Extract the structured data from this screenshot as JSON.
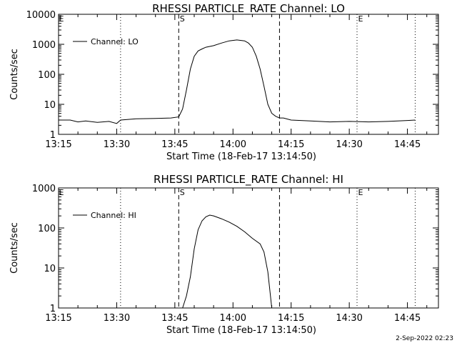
{
  "footer": {
    "timestamp": "2-Sep-2022 02:23"
  },
  "chart_data": [
    {
      "type": "line",
      "title": "RHESSI PARTICLE_RATE Channel: LO",
      "xlabel": "Start Time (18-Feb-17 13:14:50)",
      "ylabel": "Counts/sec",
      "yscale": "log",
      "ylim": [
        1,
        10000
      ],
      "xlim": [
        "13:15",
        "14:53"
      ],
      "x_ticks": [
        "13:15",
        "13:30",
        "13:45",
        "14:00",
        "14:15",
        "14:30",
        "14:45"
      ],
      "y_ticks": [
        "1",
        "10",
        "100",
        "1000",
        "10000"
      ],
      "legend": {
        "label": "Channel: LO",
        "position": "top-left"
      },
      "markers": [
        {
          "label": "S",
          "time": "13:46",
          "style": "dashed"
        },
        {
          "label": "",
          "time": "14:12",
          "style": "dashed"
        },
        {
          "label": "",
          "time": "13:31",
          "style": "dotted"
        },
        {
          "label": "E",
          "time": "14:32",
          "style": "dotted"
        },
        {
          "label": "",
          "time": "14:47",
          "style": "dotted"
        }
      ],
      "corner_label": "E",
      "grid": false,
      "series": [
        {
          "name": "Channel: LO",
          "x": [
            "13:15",
            "13:18",
            "13:20",
            "13:22",
            "13:25",
            "13:28",
            "13:30",
            "13:31",
            "13:35",
            "13:40",
            "13:44",
            "13:46",
            "13:47",
            "13:48",
            "13:49",
            "13:50",
            "13:51",
            "13:52",
            "13:53",
            "13:55",
            "13:57",
            "13:59",
            "14:01",
            "14:03",
            "14:04",
            "14:05",
            "14:06",
            "14:07",
            "14:08",
            "14:09",
            "14:10",
            "14:11",
            "14:12",
            "14:13",
            "14:15",
            "14:20",
            "14:25",
            "14:30",
            "14:35",
            "14:40",
            "14:45",
            "14:47"
          ],
          "y": [
            3.0,
            3.0,
            2.6,
            2.8,
            2.5,
            2.7,
            2.3,
            3.0,
            3.3,
            3.4,
            3.5,
            3.8,
            7,
            30,
            150,
            400,
            600,
            700,
            800,
            900,
            1100,
            1300,
            1400,
            1300,
            1100,
            800,
            400,
            150,
            40,
            10,
            5,
            4,
            3.5,
            3.5,
            3.0,
            2.8,
            2.6,
            2.7,
            2.6,
            2.7,
            2.9,
            3.0
          ]
        }
      ]
    },
    {
      "type": "line",
      "title": "RHESSI PARTICLE_RATE Channel: HI",
      "xlabel": "Start Time (18-Feb-17 13:14:50)",
      "ylabel": "Counts/sec",
      "yscale": "log",
      "ylim": [
        1,
        1000
      ],
      "xlim": [
        "13:15",
        "14:53"
      ],
      "x_ticks": [
        "13:15",
        "13:30",
        "13:45",
        "14:00",
        "14:15",
        "14:30",
        "14:45"
      ],
      "y_ticks": [
        "1",
        "10",
        "100",
        "1000"
      ],
      "legend": {
        "label": "Channel: HI",
        "position": "top-left"
      },
      "markers": [
        {
          "label": "S",
          "time": "13:46",
          "style": "dashed"
        },
        {
          "label": "",
          "time": "14:12",
          "style": "dashed"
        },
        {
          "label": "",
          "time": "13:31",
          "style": "dotted"
        },
        {
          "label": "E",
          "time": "14:32",
          "style": "dotted"
        },
        {
          "label": "",
          "time": "14:47",
          "style": "dotted"
        }
      ],
      "corner_label": "E",
      "grid": false,
      "series": [
        {
          "name": "Channel: HI",
          "x": [
            "13:47",
            "13:48",
            "13:49",
            "13:50",
            "13:51",
            "13:52",
            "13:53",
            "13:54",
            "13:55",
            "13:57",
            "13:59",
            "14:01",
            "14:03",
            "14:05",
            "14:07",
            "14:08",
            "14:09",
            "14:10"
          ],
          "y": [
            1,
            2,
            6,
            30,
            90,
            150,
            190,
            210,
            200,
            170,
            140,
            110,
            80,
            55,
            40,
            25,
            8,
            1
          ]
        }
      ]
    }
  ]
}
